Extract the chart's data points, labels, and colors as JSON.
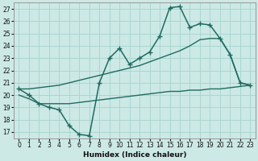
{
  "xlabel": "Humidex (Indice chaleur)",
  "bg_color": "#cce9e6",
  "line_color": "#1f6b60",
  "grid_color": "#aad6d0",
  "xlim": [
    -0.5,
    23.5
  ],
  "ylim": [
    16.5,
    27.5
  ],
  "xticks": [
    0,
    1,
    2,
    3,
    4,
    5,
    6,
    7,
    8,
    9,
    10,
    11,
    12,
    13,
    14,
    15,
    16,
    17,
    18,
    19,
    20,
    21,
    22,
    23
  ],
  "yticks": [
    17,
    18,
    19,
    20,
    21,
    22,
    23,
    24,
    25,
    26,
    27
  ],
  "line1_x": [
    0,
    1,
    2,
    3,
    4,
    5,
    6,
    7,
    8,
    9,
    10,
    11,
    12,
    13,
    14,
    15,
    16,
    17,
    18,
    19,
    20,
    21,
    22,
    23
  ],
  "line1_y": [
    20.5,
    20.0,
    19.3,
    19.0,
    18.8,
    17.5,
    16.8,
    16.7,
    21.0,
    23.0,
    23.8,
    22.5,
    23.0,
    23.5,
    24.8,
    27.1,
    27.2,
    25.5,
    25.8,
    25.7,
    24.6,
    23.3,
    21.0,
    20.8
  ],
  "line2_x": [
    0,
    1,
    2,
    3,
    4,
    5,
    6,
    7,
    8,
    9,
    10,
    11,
    12,
    13,
    14,
    15,
    16,
    17,
    18,
    19,
    20,
    21,
    22,
    23
  ],
  "line2_y": [
    20.5,
    20.5,
    20.6,
    20.7,
    20.8,
    21.0,
    21.2,
    21.4,
    21.6,
    21.8,
    22.0,
    22.2,
    22.4,
    22.7,
    23.0,
    23.3,
    23.6,
    24.0,
    24.5,
    24.6,
    24.6,
    23.3,
    21.0,
    20.8
  ],
  "line3_x": [
    0,
    1,
    2,
    3,
    4,
    5,
    6,
    7,
    8,
    9,
    10,
    11,
    12,
    13,
    14,
    15,
    16,
    17,
    18,
    19,
    20,
    21,
    22,
    23
  ],
  "line3_y": [
    20.0,
    19.7,
    19.3,
    19.3,
    19.3,
    19.3,
    19.4,
    19.5,
    19.6,
    19.7,
    19.8,
    19.9,
    20.0,
    20.1,
    20.2,
    20.3,
    20.3,
    20.4,
    20.4,
    20.5,
    20.5,
    20.6,
    20.7,
    20.8
  ]
}
